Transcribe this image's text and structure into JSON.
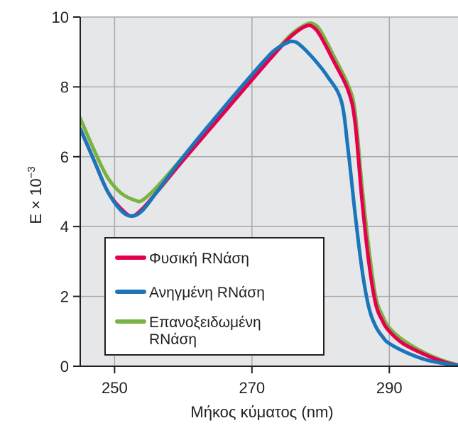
{
  "chart_data": {
    "type": "line",
    "title": "",
    "xlabel": "Μήκος κύματος (nm)",
    "ylabel_parts": {
      "main": "E  × 10",
      "exponent": "−3"
    },
    "xlim": [
      245,
      300
    ],
    "ylim": [
      0,
      10
    ],
    "x_ticks": [
      250,
      270,
      290
    ],
    "y_ticks": [
      0,
      2,
      4,
      6,
      8,
      10
    ],
    "grid": true,
    "plot_background": "#e6e7e8",
    "legend": {
      "placement": "bottom-left"
    },
    "series": [
      {
        "name": "Φυσική RNάση",
        "name_lines": [
          "Φυσική RNάση"
        ],
        "color": "#e4004f",
        "points": [
          [
            245,
            6.8
          ],
          [
            247,
            5.9
          ],
          [
            249,
            5.0
          ],
          [
            251,
            4.5
          ],
          [
            252.5,
            4.3
          ],
          [
            254,
            4.5
          ],
          [
            256,
            4.95
          ],
          [
            260,
            5.9
          ],
          [
            265,
            7.05
          ],
          [
            270,
            8.2
          ],
          [
            274,
            9.1
          ],
          [
            276,
            9.5
          ],
          [
            278,
            9.75
          ],
          [
            279,
            9.7
          ],
          [
            280,
            9.45
          ],
          [
            282,
            8.7
          ],
          [
            284,
            7.9
          ],
          [
            285,
            7.0
          ],
          [
            286,
            4.8
          ],
          [
            287,
            3.0
          ],
          [
            288,
            1.8
          ],
          [
            289,
            1.3
          ],
          [
            290,
            1.0
          ],
          [
            292,
            0.65
          ],
          [
            295,
            0.35
          ],
          [
            298,
            0.12
          ],
          [
            300,
            0.03
          ]
        ]
      },
      {
        "name": "Ανηγμένη RNάση",
        "name_lines": [
          "Ανηγμένη RNάση"
        ],
        "color": "#1b75bb",
        "points": [
          [
            245,
            6.8
          ],
          [
            247,
            5.9
          ],
          [
            249,
            5.0
          ],
          [
            251,
            4.45
          ],
          [
            252.5,
            4.3
          ],
          [
            254,
            4.45
          ],
          [
            256,
            4.95
          ],
          [
            260,
            6.0
          ],
          [
            265,
            7.2
          ],
          [
            270,
            8.35
          ],
          [
            273,
            9.0
          ],
          [
            275,
            9.25
          ],
          [
            276,
            9.3
          ],
          [
            277,
            9.2
          ],
          [
            279,
            8.8
          ],
          [
            281,
            8.3
          ],
          [
            283,
            7.6
          ],
          [
            284,
            6.2
          ],
          [
            285,
            4.4
          ],
          [
            286,
            2.8
          ],
          [
            287,
            1.7
          ],
          [
            288,
            1.15
          ],
          [
            289,
            0.85
          ],
          [
            290,
            0.65
          ],
          [
            293,
            0.35
          ],
          [
            296,
            0.15
          ],
          [
            300,
            0.02
          ]
        ]
      },
      {
        "name": "Επανοξειδωμένη RNάση",
        "name_lines": [
          "Επανοξειδωμένη",
          "RNάση"
        ],
        "color": "#7ab342",
        "points": [
          [
            245,
            7.1
          ],
          [
            247,
            6.2
          ],
          [
            249,
            5.4
          ],
          [
            251,
            4.95
          ],
          [
            253,
            4.75
          ],
          [
            254,
            4.75
          ],
          [
            256,
            5.1
          ],
          [
            260,
            6.0
          ],
          [
            265,
            7.15
          ],
          [
            270,
            8.3
          ],
          [
            274,
            9.15
          ],
          [
            276,
            9.55
          ],
          [
            278,
            9.8
          ],
          [
            279,
            9.8
          ],
          [
            280,
            9.6
          ],
          [
            282,
            8.85
          ],
          [
            284,
            8.05
          ],
          [
            285,
            7.3
          ],
          [
            286,
            5.2
          ],
          [
            287,
            3.4
          ],
          [
            288,
            2.0
          ],
          [
            289,
            1.45
          ],
          [
            290,
            1.1
          ],
          [
            292,
            0.75
          ],
          [
            295,
            0.4
          ],
          [
            298,
            0.15
          ],
          [
            300,
            0.04
          ]
        ]
      }
    ]
  }
}
